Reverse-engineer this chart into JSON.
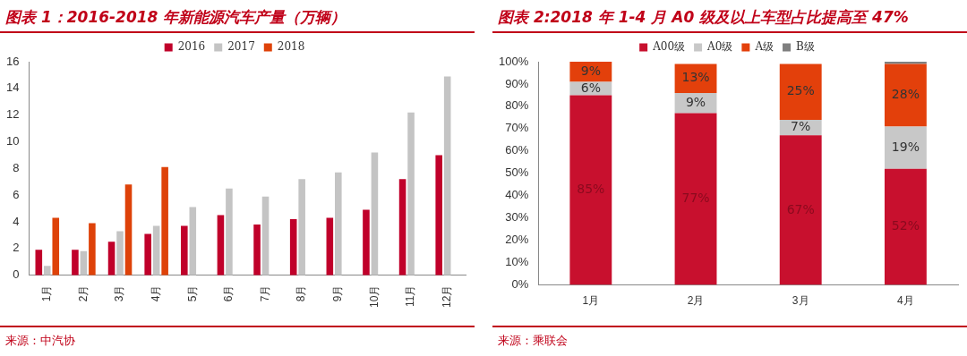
{
  "chart_data": [
    {
      "type": "bar",
      "title": "图表 1：2016-2018 年新能源汽车产量（万辆）",
      "categories": [
        "1月",
        "2月",
        "3月",
        "4月",
        "5月",
        "6月",
        "7月",
        "8月",
        "9月",
        "10月",
        "11月",
        "12月"
      ],
      "series": [
        {
          "name": "2016",
          "color": "#c0002a",
          "values": [
            1.9,
            1.9,
            2.5,
            3.1,
            3.7,
            4.5,
            3.8,
            4.2,
            4.3,
            4.9,
            7.2,
            9.0
          ]
        },
        {
          "name": "2017",
          "color": "#c4c4c4",
          "values": [
            0.7,
            1.8,
            3.3,
            3.7,
            5.1,
            6.5,
            5.9,
            7.2,
            7.7,
            9.2,
            12.2,
            14.9
          ]
        },
        {
          "name": "2018",
          "color": "#de4209",
          "values": [
            4.3,
            3.9,
            6.8,
            8.1,
            null,
            null,
            null,
            null,
            null,
            null,
            null,
            null
          ]
        }
      ],
      "ylim": [
        0,
        16
      ],
      "yticks": [
        0,
        2,
        4,
        6,
        8,
        10,
        12,
        14,
        16
      ],
      "grid": false,
      "legend": "top",
      "annotations": [
        "来源：中汽协"
      ]
    },
    {
      "type": "bar",
      "title": "图表 2:2018 年 1-4 月 A0 级及以上车型占比提高至 47%",
      "categories": [
        "1月",
        "2月",
        "3月",
        "4月"
      ],
      "stacked": true,
      "series": [
        {
          "name": "A00级",
          "color": "#c8102e",
          "values": [
            85,
            77,
            67,
            52
          ],
          "value_labels": [
            "85%",
            "77%",
            "67%",
            "52%"
          ]
        },
        {
          "name": "A0级",
          "color": "#c8c8c8",
          "values": [
            6,
            9,
            7,
            19
          ],
          "value_labels": [
            "6%",
            "9%",
            "7%",
            "19%"
          ]
        },
        {
          "name": "A级",
          "color": "#e3400b",
          "values": [
            9,
            13,
            25,
            28
          ],
          "value_labels": [
            "9%",
            "13%",
            "25%",
            "28%"
          ]
        },
        {
          "name": "B级",
          "color": "#7f7f7f",
          "values": [
            null,
            null,
            null,
            1
          ]
        }
      ],
      "ylim": [
        0,
        100
      ],
      "yticks": [
        {
          "value": 0,
          "label": "0%"
        },
        {
          "value": 10,
          "label": "10%"
        },
        {
          "value": 20,
          "label": "20%"
        },
        {
          "value": 30,
          "label": "30%"
        },
        {
          "value": 40,
          "label": "40%"
        },
        {
          "value": 50,
          "label": "50%"
        },
        {
          "value": 60,
          "label": "60%"
        },
        {
          "value": 70,
          "label": "70%"
        },
        {
          "value": 80,
          "label": "80%"
        },
        {
          "value": 90,
          "label": "90%"
        },
        {
          "value": 100,
          "label": "100%"
        }
      ],
      "grid": false,
      "legend": "top",
      "annotations": [
        "来源：乘联会"
      ]
    }
  ]
}
